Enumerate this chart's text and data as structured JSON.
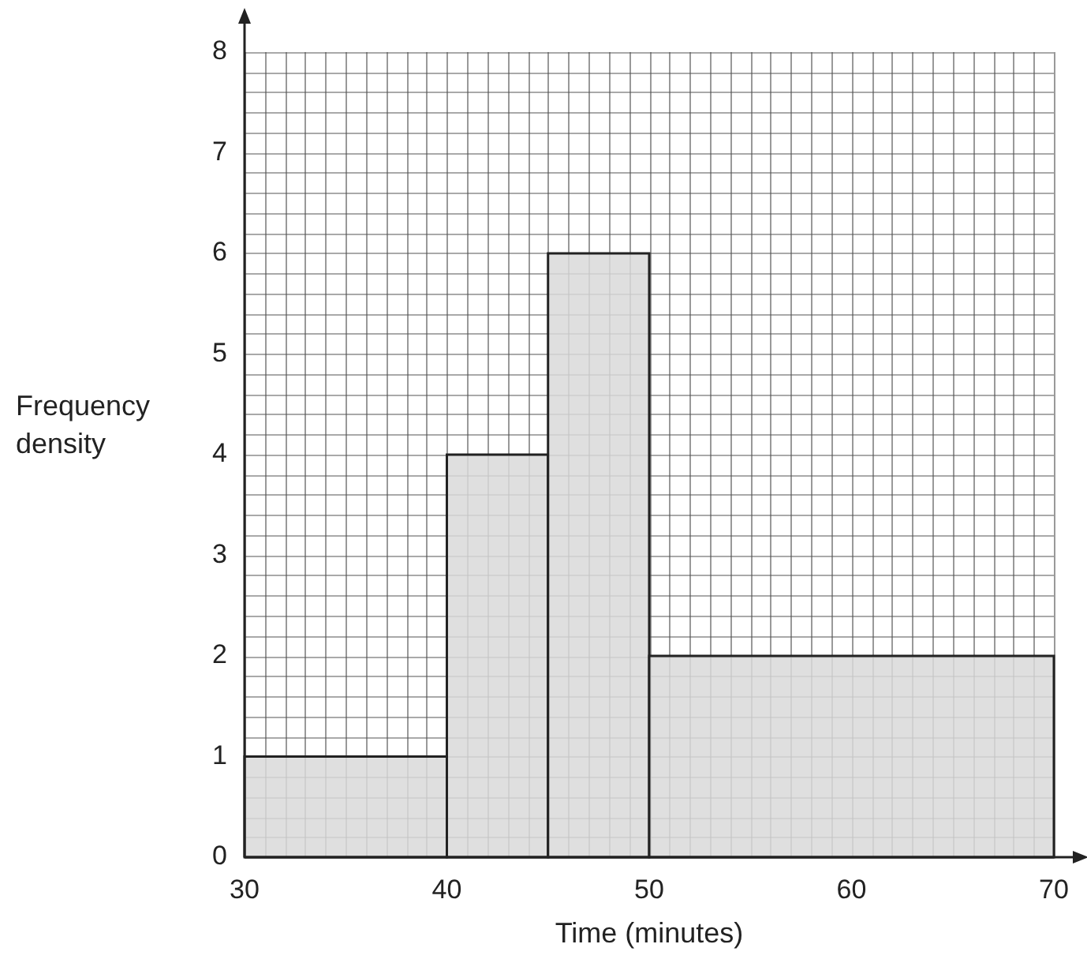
{
  "chart_data": {
    "type": "histogram",
    "xlabel": "Time (minutes)",
    "ylabel": "Frequency\ndensity",
    "bins": [
      30,
      40,
      45,
      50,
      70
    ],
    "values": [
      1,
      4,
      6,
      2
    ],
    "color": "#d9d9d9",
    "xlim": [
      30,
      70
    ],
    "xticks": [
      30,
      40,
      50,
      60,
      70
    ],
    "ylim": [
      0,
      8
    ],
    "yticks": [
      0,
      1,
      2,
      3,
      4,
      5,
      6,
      7,
      8
    ],
    "grid": true,
    "legend": false
  }
}
